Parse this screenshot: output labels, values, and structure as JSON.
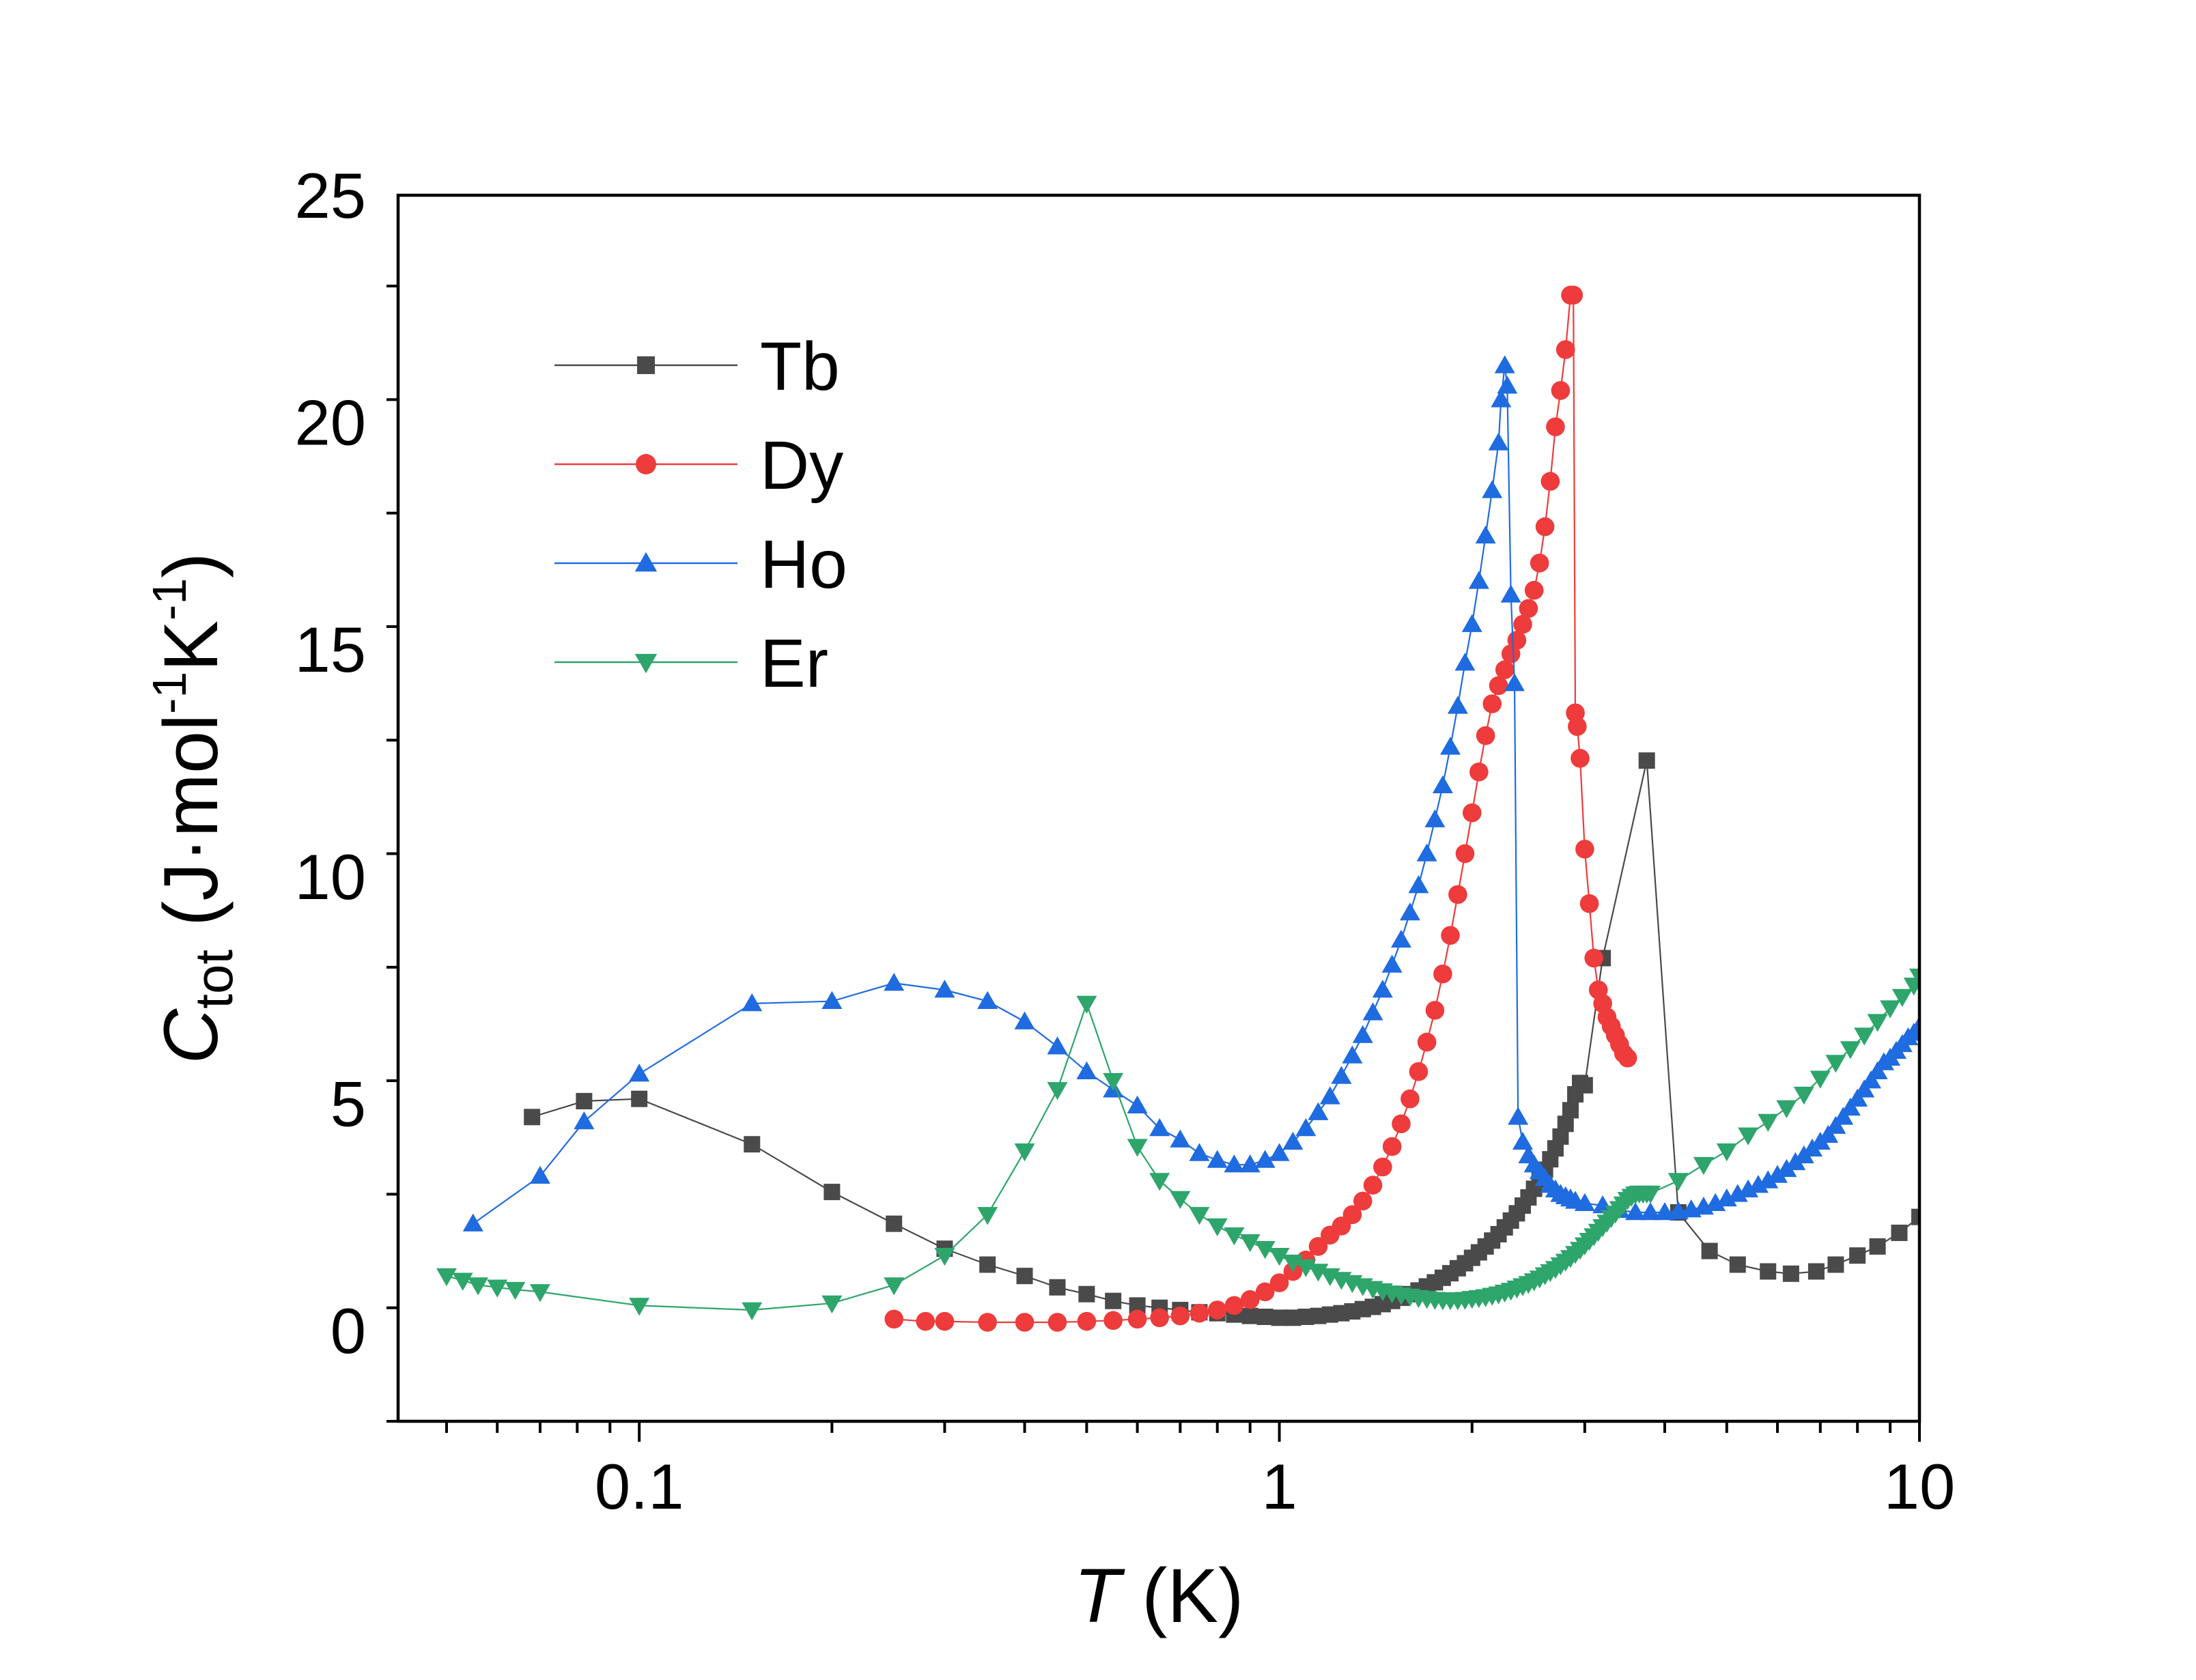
{
  "chart_data": {
    "type": "scatter",
    "title": "",
    "xscale": "log",
    "xlim": [
      0.042,
      10
    ],
    "ylim": [
      -2,
      25
    ],
    "xlabel": {
      "italic": "T",
      "rest": " (K)"
    },
    "ylabel": {
      "base": "C",
      "sub": "tot",
      "unit_pre": "(J·mol",
      "sup1": "-1",
      "unit_mid": "K",
      "sup2": "-1",
      "unit_post": ")"
    },
    "xticks": [
      {
        "value": 0.1,
        "label": "0.1"
      },
      {
        "value": 1,
        "label": "1"
      },
      {
        "value": 10,
        "label": "10"
      }
    ],
    "yticks": [
      {
        "value": 0,
        "label": "0"
      },
      {
        "value": 5,
        "label": "5"
      },
      {
        "value": 10,
        "label": "10"
      },
      {
        "value": 15,
        "label": "15"
      },
      {
        "value": 20,
        "label": "20"
      },
      {
        "value": 25,
        "label": "25"
      }
    ],
    "legend_position": "upper-left",
    "series": [
      {
        "name": "Tb",
        "color": "#4a4a4a",
        "marker": "square",
        "x": [
          0.068,
          0.082,
          0.1,
          0.15,
          0.2,
          0.25,
          0.3,
          0.35,
          0.4,
          0.45,
          0.5,
          0.55,
          0.6,
          0.65,
          0.7,
          0.75,
          0.8,
          0.85,
          0.9,
          0.95,
          1.0,
          1.05,
          1.1,
          1.15,
          1.2,
          1.25,
          1.3,
          1.35,
          1.4,
          1.45,
          1.5,
          1.55,
          1.6,
          1.65,
          1.7,
          1.75,
          1.8,
          1.85,
          1.9,
          1.95,
          2.0,
          2.05,
          2.1,
          2.15,
          2.2,
          2.25,
          2.3,
          2.35,
          2.4,
          2.45,
          2.5,
          2.55,
          2.6,
          2.65,
          2.7,
          2.75,
          2.8,
          2.85,
          2.9,
          2.95,
          3.0,
          3.2,
          3.75,
          4.2,
          4.7,
          5.2,
          5.8,
          6.3,
          6.9,
          7.4,
          8.0,
          8.6,
          9.3,
          10.0
        ],
        "y": [
          4.7,
          5.05,
          5.1,
          4.1,
          3.05,
          2.35,
          1.8,
          1.45,
          1.2,
          0.95,
          0.8,
          0.65,
          0.55,
          0.5,
          0.45,
          0.4,
          0.38,
          0.35,
          0.32,
          0.3,
          0.28,
          0.28,
          0.3,
          0.32,
          0.35,
          0.38,
          0.42,
          0.47,
          0.52,
          0.58,
          0.65,
          0.72,
          0.8,
          0.88,
          0.97,
          1.06,
          1.16,
          1.26,
          1.37,
          1.48,
          1.6,
          1.72,
          1.85,
          1.98,
          2.12,
          2.27,
          2.42,
          2.58,
          2.75,
          2.93,
          3.12,
          3.32,
          3.54,
          3.77,
          4.01,
          4.27,
          4.55,
          4.85,
          5.2,
          5.45,
          5.4,
          8.2,
          12.55,
          2.6,
          1.75,
          1.45,
          1.3,
          1.25,
          1.3,
          1.45,
          1.65,
          1.85,
          2.15,
          2.5
        ]
      },
      {
        "name": "Dy",
        "color": "#ee3b3b",
        "marker": "circle",
        "x": [
          0.25,
          0.28,
          0.3,
          0.35,
          0.4,
          0.45,
          0.5,
          0.55,
          0.6,
          0.65,
          0.7,
          0.75,
          0.8,
          0.85,
          0.9,
          0.95,
          1.0,
          1.05,
          1.1,
          1.15,
          1.2,
          1.25,
          1.3,
          1.35,
          1.4,
          1.45,
          1.5,
          1.55,
          1.6,
          1.65,
          1.7,
          1.75,
          1.8,
          1.85,
          1.9,
          1.95,
          2.0,
          2.05,
          2.1,
          2.15,
          2.2,
          2.25,
          2.3,
          2.35,
          2.4,
          2.45,
          2.5,
          2.55,
          2.6,
          2.65,
          2.7,
          2.75,
          2.8,
          2.85,
          2.88,
          2.9,
          2.92,
          2.95,
          3.0,
          3.05,
          3.1,
          3.15,
          3.2,
          3.25,
          3.3,
          3.35,
          3.4,
          3.45,
          3.5
        ],
        "y": [
          0.25,
          0.2,
          0.2,
          0.18,
          0.18,
          0.18,
          0.2,
          0.22,
          0.25,
          0.28,
          0.32,
          0.38,
          0.45,
          0.55,
          0.68,
          0.85,
          1.05,
          1.3,
          1.55,
          1.85,
          2.1,
          2.3,
          2.55,
          2.85,
          3.2,
          3.6,
          4.05,
          4.55,
          5.1,
          5.7,
          6.35,
          7.05,
          7.85,
          8.7,
          9.6,
          10.5,
          11.4,
          12.3,
          13.1,
          13.8,
          14.2,
          14.55,
          14.9,
          15.2,
          15.55,
          15.9,
          16.3,
          16.9,
          17.7,
          18.7,
          19.9,
          20.7,
          21.6,
          22.8,
          22.8,
          13.6,
          13.3,
          12.6,
          10.6,
          9.4,
          8.2,
          7.5,
          7.2,
          6.9,
          6.7,
          6.5,
          6.3,
          6.1,
          6.0
        ]
      },
      {
        "name": "Ho",
        "color": "#1f6be0",
        "marker": "triangle-up",
        "x": [
          0.055,
          0.07,
          0.082,
          0.1,
          0.15,
          0.2,
          0.25,
          0.3,
          0.35,
          0.4,
          0.45,
          0.5,
          0.55,
          0.6,
          0.65,
          0.7,
          0.75,
          0.8,
          0.85,
          0.9,
          0.95,
          1.0,
          1.05,
          1.1,
          1.15,
          1.2,
          1.25,
          1.3,
          1.35,
          1.4,
          1.45,
          1.5,
          1.55,
          1.6,
          1.65,
          1.7,
          1.75,
          1.8,
          1.85,
          1.9,
          1.95,
          2.0,
          2.05,
          2.1,
          2.15,
          2.2,
          2.22,
          2.25,
          2.27,
          2.3,
          2.33,
          2.36,
          2.4,
          2.45,
          2.5,
          2.55,
          2.6,
          2.65,
          2.7,
          2.75,
          2.8,
          2.85,
          2.9,
          3.0,
          3.2,
          3.4,
          3.6,
          3.8,
          4.0,
          4.2,
          4.4,
          4.6,
          4.8,
          5.0,
          5.2,
          5.4,
          5.6,
          5.8,
          6.0,
          6.2,
          6.4,
          6.6,
          6.8,
          7.0,
          7.2,
          7.4,
          7.6,
          7.8,
          8.0,
          8.2,
          8.4,
          8.6,
          8.8,
          9.0,
          9.2,
          9.4,
          9.6,
          9.8,
          10.0
        ],
        "y": [
          2.35,
          3.4,
          4.6,
          5.65,
          7.2,
          7.25,
          7.65,
          7.5,
          7.25,
          6.8,
          6.25,
          5.7,
          5.3,
          4.95,
          4.45,
          4.2,
          3.9,
          3.75,
          3.65,
          3.65,
          3.75,
          3.9,
          4.15,
          4.45,
          4.8,
          5.15,
          5.6,
          6.05,
          6.5,
          7.0,
          7.5,
          8.05,
          8.6,
          9.2,
          9.8,
          10.5,
          11.25,
          12.0,
          12.85,
          13.75,
          14.7,
          15.55,
          16.5,
          17.5,
          18.5,
          19.55,
          20.5,
          21.25,
          20.8,
          16.2,
          14.25,
          4.7,
          4.15,
          3.85,
          3.65,
          3.5,
          3.35,
          3.2,
          3.1,
          3.0,
          2.95,
          2.9,
          2.85,
          2.8,
          2.75,
          2.65,
          2.6,
          2.6,
          2.6,
          2.62,
          2.66,
          2.72,
          2.8,
          2.9,
          3.0,
          3.1,
          3.2,
          3.3,
          3.42,
          3.55,
          3.7,
          3.85,
          4.0,
          4.15,
          4.3,
          4.5,
          4.7,
          4.9,
          5.1,
          5.3,
          5.5,
          5.7,
          5.9,
          6.0,
          6.15,
          6.3,
          6.45,
          6.55,
          6.7
        ]
      },
      {
        "name": "Er",
        "color": "#2ea56b",
        "marker": "triangle-down",
        "x": [
          0.05,
          0.053,
          0.056,
          0.06,
          0.064,
          0.07,
          0.1,
          0.15,
          0.2,
          0.25,
          0.3,
          0.35,
          0.4,
          0.45,
          0.5,
          0.55,
          0.6,
          0.65,
          0.7,
          0.75,
          0.8,
          0.85,
          0.9,
          0.95,
          1.0,
          1.05,
          1.1,
          1.15,
          1.2,
          1.25,
          1.3,
          1.35,
          1.4,
          1.45,
          1.5,
          1.55,
          1.6,
          1.65,
          1.7,
          1.75,
          1.8,
          1.85,
          1.9,
          1.95,
          2.0,
          2.05,
          2.1,
          2.15,
          2.2,
          2.25,
          2.3,
          2.35,
          2.4,
          2.45,
          2.5,
          2.55,
          2.6,
          2.65,
          2.7,
          2.75,
          2.8,
          2.85,
          2.9,
          2.95,
          3.0,
          3.05,
          3.1,
          3.15,
          3.2,
          3.25,
          3.3,
          3.35,
          3.4,
          3.45,
          3.5,
          3.55,
          3.6,
          3.65,
          3.7,
          3.75,
          3.8,
          4.2,
          4.6,
          5.0,
          5.4,
          5.8,
          6.2,
          6.6,
          7.0,
          7.4,
          7.8,
          8.2,
          8.6,
          9.0,
          9.4,
          9.8,
          10.0
        ],
        "y": [
          1.2,
          1.1,
          1.0,
          0.95,
          0.9,
          0.85,
          0.55,
          0.45,
          0.6,
          1.0,
          1.65,
          2.55,
          3.95,
          5.3,
          7.2,
          5.5,
          4.05,
          3.3,
          2.9,
          2.55,
          2.3,
          2.1,
          1.95,
          1.8,
          1.65,
          1.5,
          1.4,
          1.3,
          1.2,
          1.12,
          1.05,
          0.98,
          0.92,
          0.87,
          0.82,
          0.78,
          0.75,
          0.72,
          0.7,
          0.68,
          0.67,
          0.67,
          0.67,
          0.68,
          0.7,
          0.72,
          0.74,
          0.77,
          0.8,
          0.84,
          0.88,
          0.93,
          0.98,
          1.03,
          1.09,
          1.15,
          1.22,
          1.29,
          1.36,
          1.44,
          1.52,
          1.6,
          1.69,
          1.78,
          1.88,
          1.98,
          2.08,
          2.18,
          2.28,
          2.38,
          2.48,
          2.58,
          2.68,
          2.78,
          2.88,
          2.95,
          3.0,
          3.02,
          3.02,
          3.02,
          3.02,
          3.3,
          3.65,
          3.95,
          4.3,
          4.6,
          4.9,
          5.2,
          5.55,
          5.9,
          6.2,
          6.5,
          6.8,
          7.1,
          7.35,
          7.6,
          7.8
        ]
      }
    ]
  }
}
